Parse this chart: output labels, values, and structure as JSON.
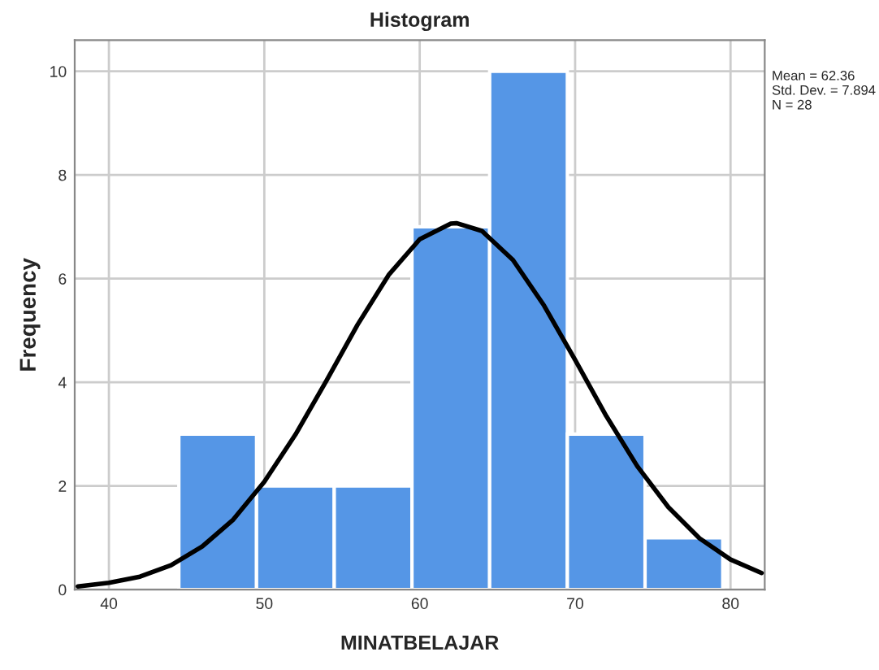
{
  "chart_data": {
    "type": "histogram",
    "title": "Histogram",
    "xlabel": "MINATBELAJAR",
    "ylabel": "Frequency",
    "bins": [
      44.5,
      49.5,
      54.5,
      59.5,
      64.5,
      69.5,
      74.5,
      79.5
    ],
    "values": [
      3,
      2,
      2,
      7,
      10,
      3,
      1
    ],
    "color": "#5596e6",
    "series": [
      {
        "type": "line",
        "color": "#000000",
        "x": [
          38,
          40,
          42,
          44,
          46,
          48,
          50,
          52,
          54,
          56,
          58,
          60,
          62,
          62.36,
          64,
          66,
          68,
          70,
          72,
          74,
          76,
          78,
          80,
          82
        ],
        "values": [
          0.06,
          0.13,
          0.25,
          0.47,
          0.83,
          1.35,
          2.08,
          2.99,
          4.03,
          5.11,
          6.07,
          6.76,
          7.06,
          7.07,
          6.92,
          6.36,
          5.48,
          4.43,
          3.35,
          2.38,
          1.59,
          0.99,
          0.58,
          0.32
        ]
      }
    ],
    "annotations": [
      "Mean = 62.36\nStd. Dev. = 7.894\nN = 28"
    ],
    "xlim": [
      37.8,
      82.2
    ],
    "xticks": [
      40,
      50,
      60,
      70,
      80
    ],
    "ylim": [
      0,
      10.6
    ],
    "yticks": [
      0,
      2,
      4,
      6,
      8,
      10
    ],
    "grid": true
  }
}
